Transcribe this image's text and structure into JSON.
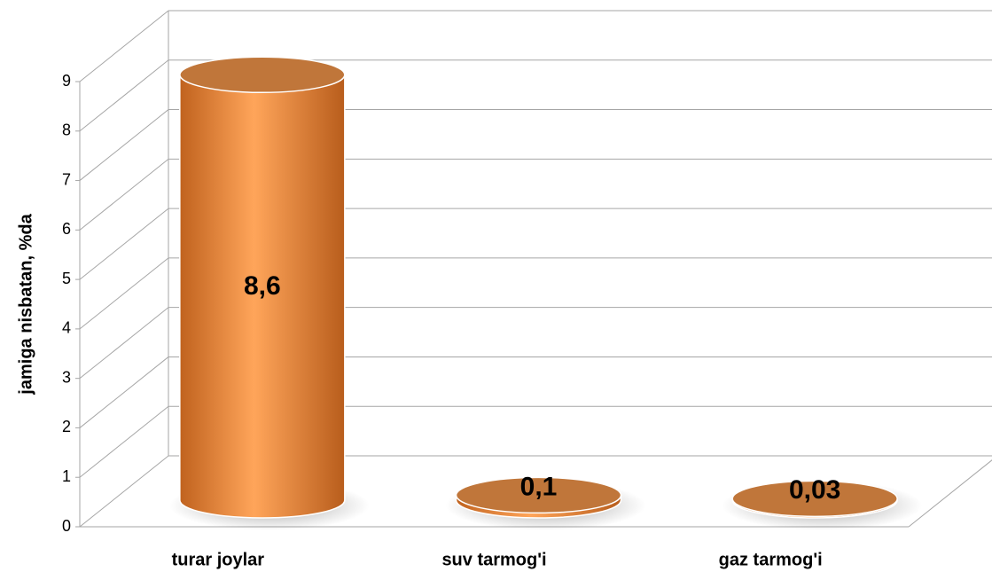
{
  "chart_data": {
    "type": "bar",
    "y_label": "jamiga nisbatan, %da",
    "categories": [
      "turar joylar",
      "suv tarmog'i",
      "gaz tarmog'i"
    ],
    "values": [
      8.6,
      0.1,
      0.03
    ],
    "value_labels": [
      "8,6",
      "0,1",
      "0,03"
    ],
    "color": "#f79646",
    "ylim": [
      0,
      9
    ],
    "yticks": [
      0,
      1,
      2,
      3,
      4,
      5,
      6,
      7,
      8,
      9
    ],
    "grid": true
  }
}
